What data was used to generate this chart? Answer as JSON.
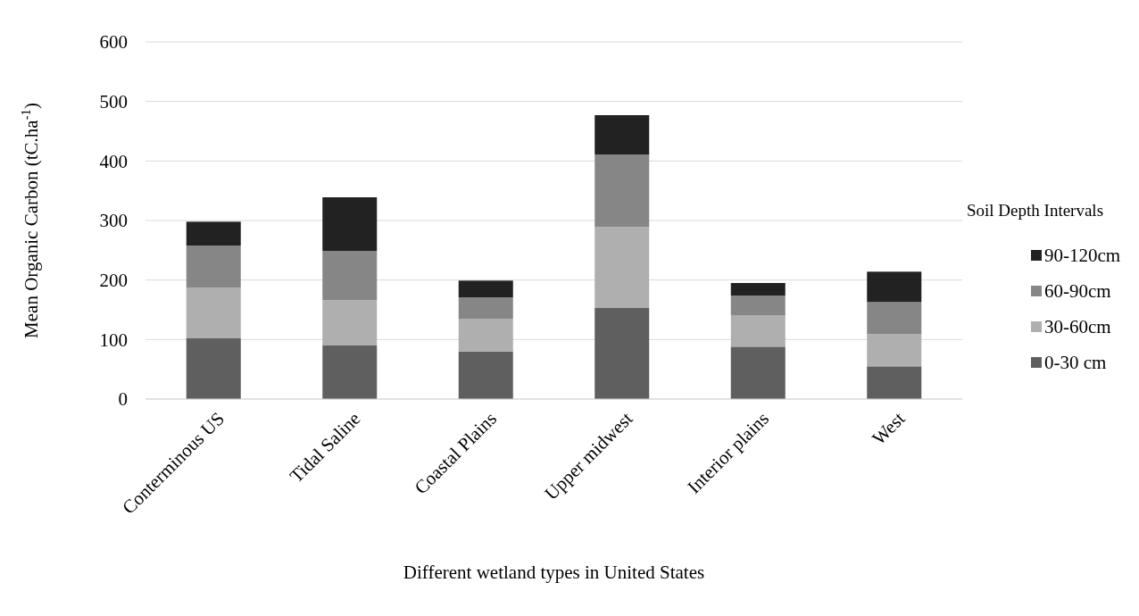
{
  "chart_data": {
    "type": "bar",
    "stacked": true,
    "xlabel": "Different wetland types in United States",
    "ylabel": "Mean Organic Carbon (tC.ha$^{-1}$)",
    "legend_title": "Soil Depth Intervals",
    "legend": "right",
    "grid": "y",
    "categories": [
      "Conterminous US",
      "Tidal Saline",
      "Coastal Plains",
      "Upper midwest",
      "Interior plains",
      "West"
    ],
    "ylim": [
      0,
      600
    ],
    "yticks": [
      0,
      100,
      200,
      300,
      400,
      500,
      600
    ],
    "series": [
      {
        "name": "0-30 cm",
        "color": "#5f5f5f",
        "values": [
          102,
          90,
          80,
          153,
          88,
          55
        ]
      },
      {
        "name": "30-60cm",
        "color": "#afafaf",
        "values": [
          85,
          76,
          55,
          136,
          53,
          54
        ]
      },
      {
        "name": "60-90cm",
        "color": "#868686",
        "values": [
          71,
          83,
          36,
          122,
          33,
          54
        ]
      },
      {
        "name": "90-120cm",
        "color": "#222222",
        "values": [
          40,
          90,
          28,
          66,
          21,
          51
        ]
      }
    ]
  }
}
